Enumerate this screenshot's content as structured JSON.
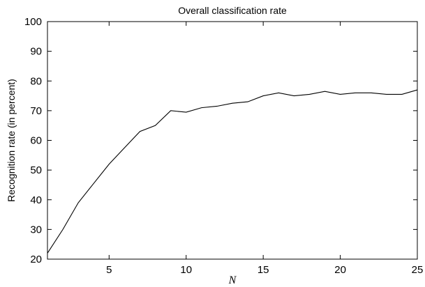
{
  "chart_data": {
    "type": "line",
    "title": "Overall classification rate",
    "xlabel": "N",
    "ylabel": "Recognition rate (in percent)",
    "xlim": [
      1,
      25
    ],
    "ylim": [
      20,
      100
    ],
    "xticks": [
      5,
      10,
      15,
      20,
      25
    ],
    "yticks": [
      20,
      30,
      40,
      50,
      60,
      70,
      80,
      90,
      100
    ],
    "grid": false,
    "series": [
      {
        "color": "#000000",
        "x": [
          1,
          2,
          3,
          4,
          5,
          6,
          7,
          8,
          9,
          10,
          11,
          12,
          13,
          14,
          15,
          16,
          17,
          18,
          19,
          20,
          21,
          22,
          23,
          24,
          25
        ],
        "y": [
          22,
          30,
          39,
          45.5,
          52,
          57.5,
          63,
          65,
          70,
          69.5,
          71,
          71.5,
          72.5,
          73,
          75,
          76,
          75,
          75.5,
          76.5,
          75.5,
          76,
          76,
          75.5,
          75.5,
          77
        ]
      }
    ]
  }
}
